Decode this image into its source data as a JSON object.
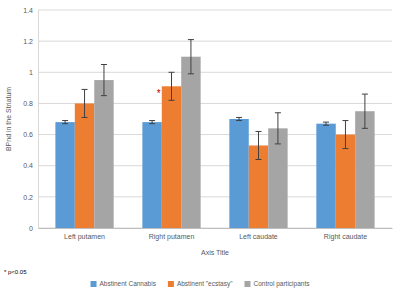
{
  "chart_data": {
    "type": "bar",
    "ylabel": "BPnd in the Striatum",
    "xlabel": "Axis Title",
    "categories": [
      "Left putamen",
      "Right putamen",
      "Left caudate",
      "Right caudate"
    ],
    "series": [
      {
        "name": "Abstinent Cannabis",
        "color": "#5b9bd5",
        "values": [
          0.68,
          0.68,
          0.7,
          0.67
        ],
        "errors": [
          0.01,
          0.01,
          0.01,
          0.01
        ]
      },
      {
        "name": "Abstinent \"ecstasy\"",
        "color": "#ed7d31",
        "values": [
          0.8,
          0.91,
          0.53,
          0.6
        ],
        "errors": [
          0.09,
          0.09,
          0.09,
          0.09
        ]
      },
      {
        "name": "Control participants",
        "color": "#a5a5a5",
        "values": [
          0.95,
          1.1,
          0.64,
          0.75
        ],
        "errors": [
          0.1,
          0.11,
          0.1,
          0.11
        ]
      }
    ],
    "ylim": [
      0,
      1.4
    ],
    "yticks": [
      0,
      0.2,
      0.4,
      0.6,
      0.8,
      1,
      1.2,
      1.4
    ],
    "grid": true,
    "legend": "bottom",
    "annotations": [
      {
        "text": "*",
        "x": "Right putamen",
        "y": 0.86
      },
      {
        "text": "* p<0.05"
      }
    ]
  }
}
